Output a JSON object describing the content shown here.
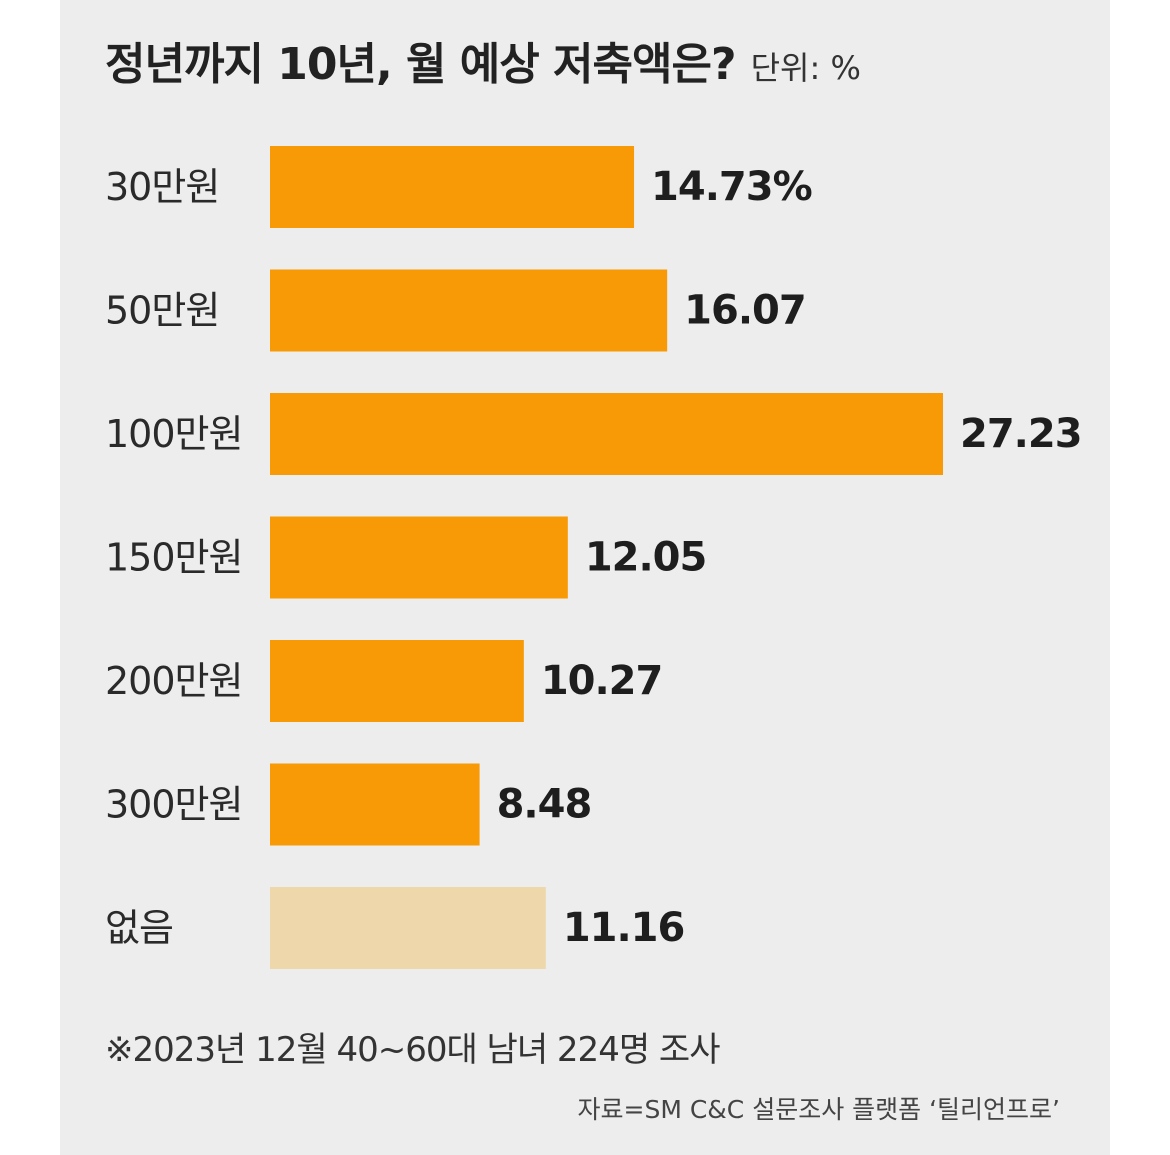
{
  "header": {
    "title": "정년까지 10년, 월 예상 저축액은?",
    "unit": "단위: %"
  },
  "chart_data": {
    "type": "bar",
    "orientation": "horizontal",
    "categories": [
      "30만원",
      "50만원",
      "100만원",
      "150만원",
      "200만원",
      "300만원",
      "없음"
    ],
    "values": [
      14.73,
      16.07,
      27.23,
      12.05,
      10.27,
      8.48,
      11.16
    ],
    "value_labels": [
      "14.73%",
      "16.07",
      "27.23",
      "12.05",
      "10.27",
      "8.48",
      "11.16"
    ],
    "colors": [
      "#f79a06",
      "#f79a06",
      "#f79a06",
      "#f79a06",
      "#f79a06",
      "#f79a06",
      "#efd7ac"
    ],
    "xlim": [
      0,
      27.23
    ],
    "grid": false,
    "legend": "none"
  },
  "footer": {
    "note": "※2023년 12월 40~60대 남녀 224명 조사",
    "source": "자료=SM C&C 설문조사 플랫폼 ‘틸리언프로’"
  }
}
